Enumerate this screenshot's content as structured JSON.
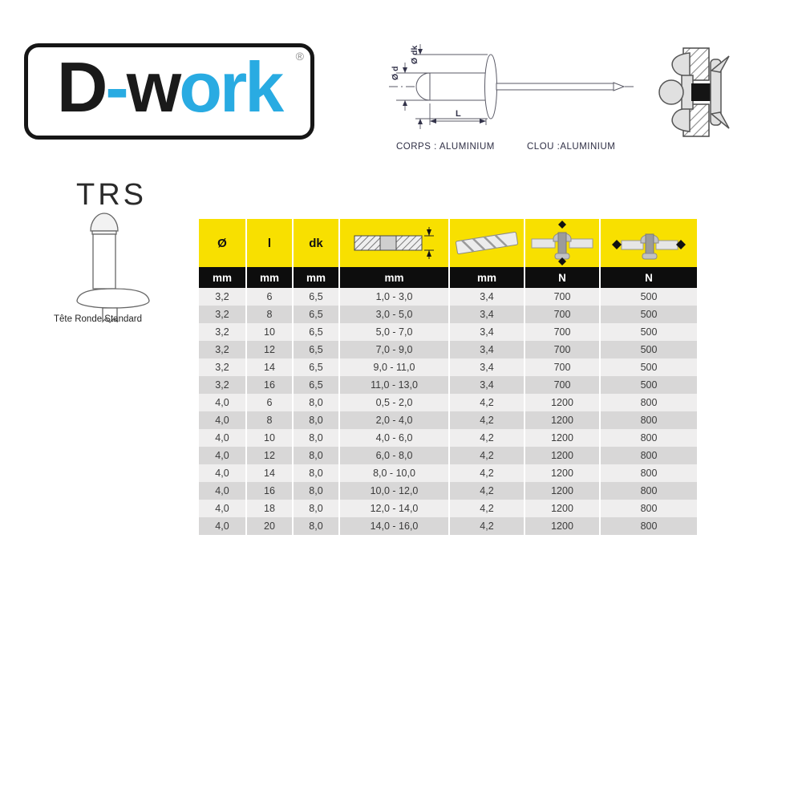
{
  "colors": {
    "header_yellow": "#F8E000",
    "units_black": "#0D0D0D",
    "row_light": "#EFEEEE",
    "row_dark": "#D8D7D7",
    "logo_blue": "#29ABE2",
    "logo_black": "#1A1A1A",
    "text_dark": "#3B3B3B"
  },
  "logo": {
    "part_d": "D",
    "part_dash": "-",
    "part_w": "w",
    "part_ork": "ork",
    "registered_mark": "®"
  },
  "product": {
    "code": "TRS",
    "head_type": "Tête Ronde Standard"
  },
  "diagram": {
    "label_d": "Ø d",
    "label_dk": "Ø dk",
    "label_l": "L",
    "body_material": "CORPS : ALUMINIUM",
    "nail_material": "CLOU :ALUMINIUM"
  },
  "table": {
    "columns": [
      {
        "label": "Ø",
        "unit": "mm"
      },
      {
        "label": "l",
        "unit": "mm"
      },
      {
        "label": "dk",
        "unit": "mm"
      },
      {
        "label": "",
        "icon": "clamp-range-icon",
        "unit": "mm"
      },
      {
        "label": "",
        "icon": "drill-bit-icon",
        "unit": "mm"
      },
      {
        "label": "",
        "icon": "shear-strength-icon",
        "unit": "N"
      },
      {
        "label": "",
        "icon": "tensile-strength-icon",
        "unit": "N"
      }
    ],
    "rows": [
      [
        "3,2",
        "6",
        "6,5",
        "1,0 - 3,0",
        "3,4",
        "700",
        "500"
      ],
      [
        "3,2",
        "8",
        "6,5",
        "3,0 - 5,0",
        "3,4",
        "700",
        "500"
      ],
      [
        "3,2",
        "10",
        "6,5",
        "5,0 - 7,0",
        "3,4",
        "700",
        "500"
      ],
      [
        "3,2",
        "12",
        "6,5",
        "7,0 - 9,0",
        "3,4",
        "700",
        "500"
      ],
      [
        "3,2",
        "14",
        "6,5",
        "9,0 - 11,0",
        "3,4",
        "700",
        "500"
      ],
      [
        "3,2",
        "16",
        "6,5",
        "11,0 - 13,0",
        "3,4",
        "700",
        "500"
      ],
      [
        "4,0",
        "6",
        "8,0",
        "0,5 - 2,0",
        "4,2",
        "1200",
        "800"
      ],
      [
        "4,0",
        "8",
        "8,0",
        "2,0 - 4,0",
        "4,2",
        "1200",
        "800"
      ],
      [
        "4,0",
        "10",
        "8,0",
        "4,0 - 6,0",
        "4,2",
        "1200",
        "800"
      ],
      [
        "4,0",
        "12",
        "8,0",
        "6,0 - 8,0",
        "4,2",
        "1200",
        "800"
      ],
      [
        "4,0",
        "14",
        "8,0",
        "8,0 - 10,0",
        "4,2",
        "1200",
        "800"
      ],
      [
        "4,0",
        "16",
        "8,0",
        "10,0 - 12,0",
        "4,2",
        "1200",
        "800"
      ],
      [
        "4,0",
        "18",
        "8,0",
        "12,0 - 14,0",
        "4,2",
        "1200",
        "800"
      ],
      [
        "4,0",
        "20",
        "8,0",
        "14,0 - 16,0",
        "4,2",
        "1200",
        "800"
      ]
    ]
  }
}
